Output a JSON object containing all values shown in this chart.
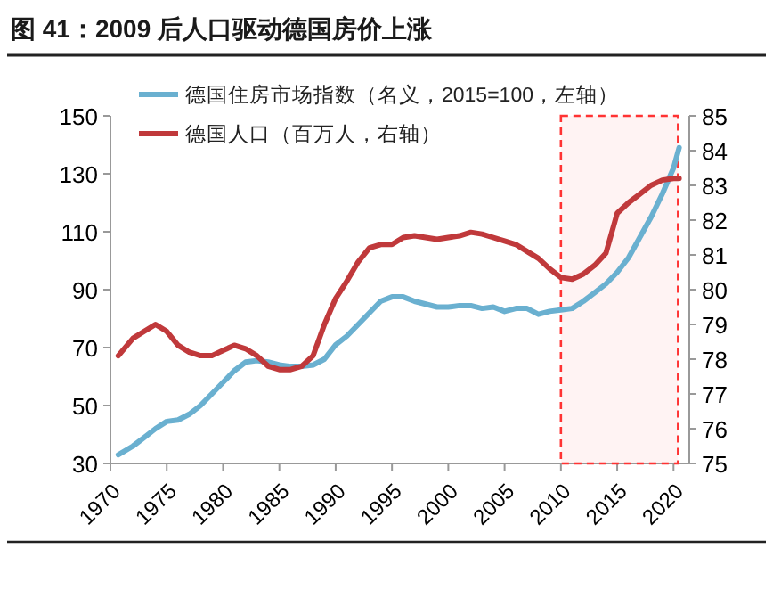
{
  "chart_data": {
    "type": "line",
    "title": "图 41：2009 后人口驱动德国房价上涨",
    "x": [
      1970.7,
      1972,
      1973,
      1974,
      1975,
      1976,
      1977,
      1978,
      1979,
      1980,
      1981,
      1982,
      1983,
      1984,
      1985,
      1986,
      1987,
      1988,
      1989,
      1990,
      1991,
      1992,
      1993,
      1994,
      1995,
      1996,
      1997,
      1998,
      1999,
      2000,
      2001,
      2002,
      2003,
      2004,
      2005,
      2006,
      2007,
      2008,
      2009,
      2010,
      2011,
      2012,
      2013,
      2014,
      2015,
      2016,
      2017,
      2018,
      2019,
      2020,
      2020.5
    ],
    "series": [
      {
        "name": "德国住房市场指数（名义，2015=100，左轴）",
        "color": "#6ab0d0",
        "values": [
          33,
          36,
          39,
          42,
          44.5,
          45,
          47,
          50,
          54,
          58,
          62,
          65,
          65.5,
          65,
          64,
          63.5,
          63.5,
          64,
          66,
          71,
          74,
          78,
          82,
          86,
          87.5,
          87.5,
          86,
          85,
          84,
          84,
          84.5,
          84.5,
          83.5,
          84,
          82.5,
          83.5,
          83.5,
          81.5,
          82.5,
          83,
          83.5,
          86,
          89,
          92,
          96,
          101,
          108,
          115,
          123,
          132,
          139
        ]
      },
      {
        "name": "德国人口（百万人，右轴）",
        "color": "#c0393b",
        "axis": "y2",
        "values": [
          78.1,
          78.6,
          78.8,
          79.0,
          78.8,
          78.4,
          78.2,
          78.1,
          78.1,
          78.25,
          78.4,
          78.3,
          78.1,
          77.8,
          77.7,
          77.7,
          77.8,
          78.1,
          79.0,
          79.75,
          80.25,
          80.8,
          81.2,
          81.3,
          81.3,
          81.5,
          81.55,
          81.5,
          81.45,
          81.5,
          81.55,
          81.65,
          81.6,
          81.5,
          81.4,
          81.3,
          81.1,
          80.9,
          80.6,
          80.35,
          80.3,
          80.45,
          80.7,
          81.05,
          82.2,
          82.5,
          82.75,
          83.0,
          83.15,
          83.2,
          83.2
        ]
      }
    ],
    "xlim": [
      1970,
      2021.4
    ],
    "xticks": [
      1970,
      1975,
      1980,
      1985,
      1990,
      1995,
      2000,
      2005,
      2010,
      2015,
      2020
    ],
    "ylim": [
      30,
      150
    ],
    "yticks": [
      30,
      50,
      70,
      90,
      110,
      130,
      150
    ],
    "y2lim": [
      75,
      85
    ],
    "y2ticks": [
      75,
      76,
      77,
      78,
      79,
      80,
      81,
      82,
      83,
      84,
      85
    ],
    "bands": [
      {
        "axis": "x",
        "from": 2010,
        "to": 2020.4,
        "color": "#ff3333"
      }
    ],
    "legend": "top left",
    "grid": false,
    "marker": "none",
    "line_style": "solid"
  }
}
